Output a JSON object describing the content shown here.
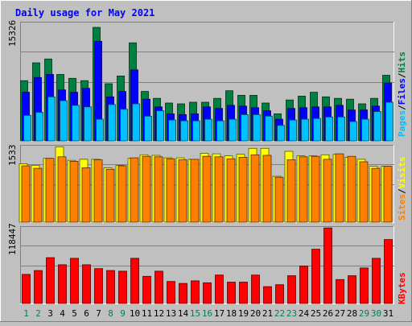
{
  "chart_data": [
    {
      "type": "bar",
      "title": "Daily usage for May 2021",
      "panel": "hits-files-pages",
      "ymax_label": "15326",
      "ylim": [
        0,
        15326
      ],
      "categories": [
        "1",
        "2",
        "3",
        "4",
        "5",
        "6",
        "7",
        "8",
        "9",
        "10",
        "11",
        "12",
        "13",
        "14",
        "15",
        "16",
        "17",
        "18",
        "19",
        "20",
        "21",
        "22",
        "23",
        "24",
        "25",
        "26",
        "27",
        "28",
        "29",
        "30",
        "31"
      ],
      "weekend_days": [
        1,
        2,
        8,
        9,
        15,
        16,
        22,
        23,
        29,
        30
      ],
      "legend": [
        "Pages",
        "/",
        "Files",
        "/",
        "Hits"
      ],
      "series": [
        {
          "name": "Hits",
          "color": "#008040",
          "values": [
            7800,
            10100,
            10600,
            8600,
            8100,
            7800,
            14700,
            7400,
            8400,
            12700,
            6400,
            5500,
            4900,
            4800,
            5000,
            5000,
            5500,
            6500,
            5900,
            5900,
            4900,
            3500,
            5300,
            5800,
            6300,
            5700,
            5500,
            5400,
            4800,
            5500,
            8500
          ]
        },
        {
          "name": "Files",
          "color": "#0000ff",
          "values": [
            6300,
            8200,
            8600,
            6600,
            6300,
            6800,
            12900,
            5700,
            6400,
            9200,
            5400,
            4400,
            3500,
            3400,
            3500,
            4400,
            4200,
            4600,
            4500,
            4300,
            3900,
            2800,
            4200,
            4300,
            4400,
            4400,
            4600,
            4000,
            4000,
            4500,
            7500
          ]
        },
        {
          "name": "Pages",
          "color": "#00c0ff",
          "values": [
            3300,
            3700,
            5700,
            5200,
            4600,
            4400,
            2800,
            4700,
            4100,
            4800,
            3200,
            3900,
            2700,
            2600,
            2600,
            2800,
            2600,
            2800,
            3400,
            3400,
            3200,
            2000,
            2700,
            2800,
            2900,
            3100,
            3100,
            2500,
            2800,
            3800,
            5000
          ]
        }
      ]
    },
    {
      "type": "bar",
      "panel": "visits-sites",
      "ymax_label": "1533",
      "ylim": [
        0,
        1533
      ],
      "legend": [
        "Sites",
        "/",
        "Visits"
      ],
      "series": [
        {
          "name": "Visits",
          "color": "#ffff00",
          "values": [
            1170,
            1140,
            1280,
            1510,
            1240,
            1260,
            1260,
            1090,
            1140,
            1280,
            1350,
            1340,
            1290,
            1290,
            1260,
            1380,
            1370,
            1330,
            1360,
            1480,
            1480,
            920,
            1420,
            1330,
            1330,
            1350,
            1360,
            1300,
            1260,
            1120,
            1120
          ]
        },
        {
          "name": "Sites",
          "color": "#ff8000",
          "values": [
            1130,
            1080,
            1280,
            1310,
            1220,
            1090,
            1250,
            1060,
            1130,
            1290,
            1320,
            1310,
            1270,
            1250,
            1260,
            1320,
            1310,
            1270,
            1300,
            1350,
            1340,
            900,
            1250,
            1310,
            1320,
            1260,
            1370,
            1320,
            1210,
            1080,
            1120
          ]
        }
      ]
    },
    {
      "type": "bar",
      "panel": "kbytes",
      "ymax_label": "118447",
      "ylim": [
        0,
        118447
      ],
      "legend": [
        "KBytes"
      ],
      "series": [
        {
          "name": "KBytes",
          "color": "#ff0000",
          "values": [
            45000,
            51000,
            71000,
            60000,
            70000,
            60000,
            54000,
            51000,
            50000,
            70000,
            42000,
            50000,
            34000,
            31000,
            35000,
            32000,
            44000,
            33000,
            33000,
            44000,
            26000,
            29000,
            43000,
            58000,
            84000,
            117000,
            37000,
            43000,
            55000,
            70000,
            99000
          ]
        }
      ]
    }
  ]
}
